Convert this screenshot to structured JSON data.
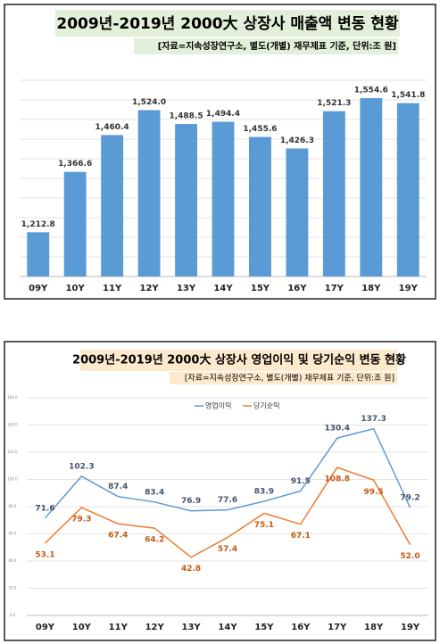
{
  "chart_data": [
    {
      "type": "bar",
      "title": "2009년-2019년 2000大 상장사 매출액 변동 현황",
      "subtitle": "[자료=지속성장연구소, 별도(개별) 재무제표 기준, 단위:조 원]",
      "categories": [
        "09Y",
        "10Y",
        "11Y",
        "12Y",
        "13Y",
        "14Y",
        "15Y",
        "16Y",
        "17Y",
        "18Y",
        "19Y"
      ],
      "values": [
        1212.8,
        1366.6,
        1460.4,
        1524.0,
        1488.5,
        1494.4,
        1455.6,
        1426.3,
        1521.3,
        1554.6,
        1541.8
      ],
      "value_labels": [
        "1,212.8",
        "1,366.6",
        "1,460.4",
        "1,524.0",
        "1,488.5",
        "1,494.4",
        "1,455.6",
        "1,426.3",
        "1,521.3",
        "1,554.6",
        "1,541.8"
      ],
      "color": "#5b9bd5",
      "ylim": [
        1100,
        1600
      ],
      "yticks": [
        1100,
        1150,
        1200,
        1250,
        1300,
        1350,
        1400,
        1450,
        1500,
        1550,
        1600
      ],
      "grid": true
    },
    {
      "type": "line",
      "title": "2009년-2019년 2000大 상장사 영업이익 및 당기순익 변동 현황",
      "subtitle": "[자료=지속성장연구소, 별도(개별) 재무제표 기준, 단위:조 원]",
      "categories": [
        "09Y",
        "10Y",
        "11Y",
        "12Y",
        "13Y",
        "14Y",
        "15Y",
        "16Y",
        "17Y",
        "18Y",
        "19Y"
      ],
      "series": [
        {
          "name": "영업이익",
          "color": "#5b9bd5",
          "values": [
            71.6,
            102.3,
            87.4,
            83.4,
            76.9,
            77.6,
            83.9,
            91.5,
            130.4,
            137.3,
            79.2
          ]
        },
        {
          "name": "당기순익",
          "color": "#ed7d31",
          "values": [
            53.1,
            79.3,
            67.4,
            64.2,
            42.8,
            57.4,
            75.1,
            67.1,
            108.8,
            99.5,
            52.0
          ],
          "value_labels": [
            "53.1",
            "79.3",
            "67.4",
            "64.2",
            "42.8",
            "57.4",
            "75.1",
            "67.1",
            "108.8",
            "99.5",
            "52.0"
          ]
        }
      ],
      "ylim": [
        0,
        160
      ],
      "yticks": [
        {
          "value": 0,
          "label": "0.0"
        },
        {
          "value": 20,
          "label": "20.0"
        },
        {
          "value": 40,
          "label": "40.0"
        },
        {
          "value": 60,
          "label": "60.0"
        },
        {
          "value": 80,
          "label": "80.0"
        },
        {
          "value": 100,
          "label": "100.0"
        },
        {
          "value": 120,
          "label": "120.0"
        },
        {
          "value": 140,
          "label": "140.0"
        },
        {
          "value": 160,
          "label": "160.0"
        }
      ],
      "grid": true,
      "legend": "top"
    }
  ]
}
